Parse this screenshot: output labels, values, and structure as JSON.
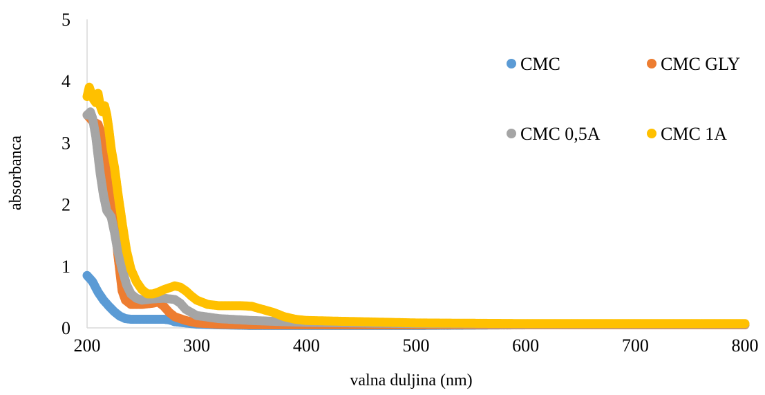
{
  "chart_data": {
    "type": "scatter",
    "xlabel": "valna duljina (nm)",
    "ylabel": "absorbanca",
    "xlim": [
      200,
      800
    ],
    "ylim": [
      0,
      5
    ],
    "xticks": [
      "200",
      "300",
      "400",
      "500",
      "600",
      "700",
      "800"
    ],
    "yticks": [
      "0",
      "1",
      "2",
      "3",
      "4",
      "5"
    ],
    "grid": false,
    "legend_position": "top-right",
    "series": [
      {
        "name": "CMC",
        "color": "#5B9BD5",
        "points": [
          [
            200,
            0.85
          ],
          [
            205,
            0.75
          ],
          [
            210,
            0.58
          ],
          [
            215,
            0.45
          ],
          [
            220,
            0.35
          ],
          [
            225,
            0.26
          ],
          [
            230,
            0.19
          ],
          [
            235,
            0.15
          ],
          [
            240,
            0.14
          ],
          [
            250,
            0.14
          ],
          [
            260,
            0.14
          ],
          [
            270,
            0.14
          ],
          [
            275,
            0.13
          ],
          [
            280,
            0.1
          ],
          [
            290,
            0.08
          ],
          [
            300,
            0.06
          ],
          [
            320,
            0.05
          ],
          [
            350,
            0.04
          ],
          [
            400,
            0.04
          ],
          [
            500,
            0.04
          ],
          [
            600,
            0.05
          ],
          [
            700,
            0.05
          ],
          [
            800,
            0.05
          ]
        ]
      },
      {
        "name": "CMC GLY",
        "color": "#ED7D31",
        "points": [
          [
            200,
            3.45
          ],
          [
            205,
            3.35
          ],
          [
            210,
            3.3
          ],
          [
            215,
            3.05
          ],
          [
            218,
            2.8
          ],
          [
            220,
            2.4
          ],
          [
            222,
            2.05
          ],
          [
            224,
            1.8
          ],
          [
            226,
            1.55
          ],
          [
            228,
            1.2
          ],
          [
            230,
            0.9
          ],
          [
            232,
            0.6
          ],
          [
            235,
            0.45
          ],
          [
            240,
            0.38
          ],
          [
            250,
            0.38
          ],
          [
            260,
            0.4
          ],
          [
            265,
            0.42
          ],
          [
            270,
            0.35
          ],
          [
            275,
            0.25
          ],
          [
            280,
            0.18
          ],
          [
            290,
            0.12
          ],
          [
            300,
            0.08
          ],
          [
            320,
            0.06
          ],
          [
            350,
            0.05
          ],
          [
            400,
            0.05
          ],
          [
            500,
            0.05
          ],
          [
            600,
            0.05
          ],
          [
            700,
            0.05
          ],
          [
            800,
            0.05
          ]
        ]
      },
      {
        "name": "CMC 0,5A",
        "color": "#A5A5A5",
        "points": [
          [
            200,
            3.45
          ],
          [
            203,
            3.5
          ],
          [
            205,
            3.4
          ],
          [
            208,
            3.1
          ],
          [
            210,
            2.8
          ],
          [
            212,
            2.5
          ],
          [
            215,
            2.15
          ],
          [
            218,
            1.9
          ],
          [
            222,
            1.8
          ],
          [
            225,
            1.55
          ],
          [
            228,
            1.25
          ],
          [
            232,
            0.95
          ],
          [
            236,
            0.7
          ],
          [
            240,
            0.55
          ],
          [
            245,
            0.48
          ],
          [
            250,
            0.45
          ],
          [
            260,
            0.47
          ],
          [
            270,
            0.48
          ],
          [
            280,
            0.46
          ],
          [
            285,
            0.4
          ],
          [
            290,
            0.3
          ],
          [
            300,
            0.2
          ],
          [
            320,
            0.15
          ],
          [
            350,
            0.12
          ],
          [
            380,
            0.1
          ],
          [
            400,
            0.09
          ],
          [
            450,
            0.08
          ],
          [
            500,
            0.07
          ],
          [
            600,
            0.06
          ],
          [
            700,
            0.06
          ],
          [
            800,
            0.06
          ]
        ]
      },
      {
        "name": "CMC 1A",
        "color": "#FFC000",
        "points": [
          [
            200,
            3.75
          ],
          [
            202,
            3.9
          ],
          [
            204,
            3.8
          ],
          [
            206,
            3.7
          ],
          [
            208,
            3.65
          ],
          [
            210,
            3.8
          ],
          [
            212,
            3.6
          ],
          [
            214,
            3.5
          ],
          [
            216,
            3.6
          ],
          [
            218,
            3.45
          ],
          [
            220,
            3.2
          ],
          [
            222,
            2.9
          ],
          [
            225,
            2.6
          ],
          [
            228,
            2.2
          ],
          [
            232,
            1.7
          ],
          [
            236,
            1.25
          ],
          [
            240,
            0.95
          ],
          [
            245,
            0.75
          ],
          [
            250,
            0.62
          ],
          [
            255,
            0.55
          ],
          [
            260,
            0.55
          ],
          [
            265,
            0.58
          ],
          [
            270,
            0.62
          ],
          [
            275,
            0.65
          ],
          [
            280,
            0.68
          ],
          [
            285,
            0.66
          ],
          [
            290,
            0.6
          ],
          [
            295,
            0.52
          ],
          [
            300,
            0.45
          ],
          [
            310,
            0.38
          ],
          [
            320,
            0.36
          ],
          [
            330,
            0.36
          ],
          [
            340,
            0.36
          ],
          [
            350,
            0.35
          ],
          [
            360,
            0.3
          ],
          [
            370,
            0.25
          ],
          [
            380,
            0.18
          ],
          [
            390,
            0.14
          ],
          [
            400,
            0.12
          ],
          [
            450,
            0.1
          ],
          [
            500,
            0.08
          ],
          [
            600,
            0.07
          ],
          [
            700,
            0.07
          ],
          [
            800,
            0.07
          ]
        ]
      }
    ]
  }
}
